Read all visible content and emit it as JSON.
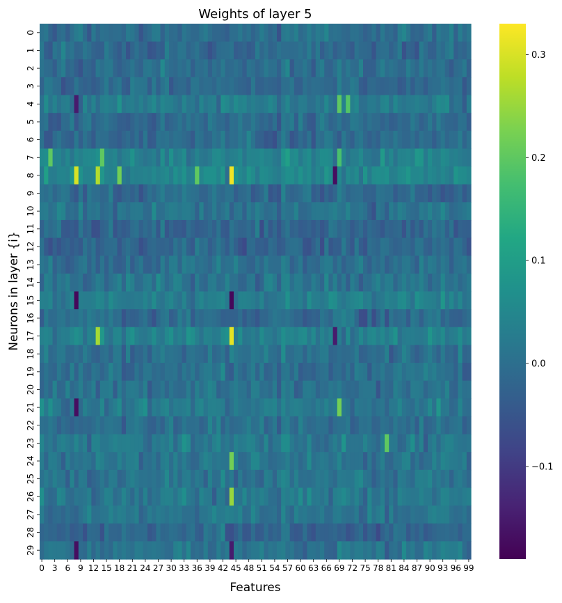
{
  "chart_data": {
    "type": "heatmap",
    "title": "Weights of layer 5",
    "xlabel": "Features",
    "ylabel": "Neurons in layer {i}",
    "n_cols": 100,
    "x_tick_labels": [
      "0",
      "3",
      "6",
      "9",
      "12",
      "15",
      "18",
      "21",
      "24",
      "27",
      "30",
      "33",
      "36",
      "39",
      "42",
      "45",
      "48",
      "51",
      "54",
      "57",
      "60",
      "63",
      "66",
      "69",
      "72",
      "75",
      "78",
      "81",
      "84",
      "87",
      "90",
      "93",
      "96",
      "99"
    ],
    "y_tick_labels": [
      "0",
      "1",
      "2",
      "3",
      "4",
      "5",
      "6",
      "7",
      "8",
      "9",
      "10",
      "11",
      "12",
      "13",
      "14",
      "15",
      "16",
      "17",
      "18",
      "19",
      "20",
      "21",
      "22",
      "23",
      "24",
      "25",
      "26",
      "27",
      "28",
      "29"
    ],
    "colormap": "viridis",
    "vmin": -0.19,
    "vmax": 0.33,
    "colorbar_ticks": [
      {
        "value": -0.1,
        "label": "−0.1"
      },
      {
        "value": 0.0,
        "label": "0.0"
      },
      {
        "value": 0.1,
        "label": "0.1"
      },
      {
        "value": 0.2,
        "label": "0.2"
      },
      {
        "value": 0.3,
        "label": "0.3"
      }
    ],
    "row_bias": [
      0.0,
      -0.01,
      0.0,
      -0.01,
      0.02,
      -0.01,
      -0.01,
      0.04,
      0.05,
      -0.01,
      0.01,
      -0.02,
      -0.02,
      0.0,
      0.01,
      0.03,
      -0.01,
      0.04,
      0.0,
      0.0,
      0.0,
      0.02,
      0.0,
      0.02,
      0.01,
      0.01,
      0.02,
      0.01,
      -0.02,
      0.01
    ],
    "notable_cells": [
      {
        "row": 8,
        "col": 8,
        "value": 0.3
      },
      {
        "row": 8,
        "col": 13,
        "value": 0.27
      },
      {
        "row": 8,
        "col": 44,
        "value": 0.32
      },
      {
        "row": 8,
        "col": 68,
        "value": -0.17
      },
      {
        "row": 8,
        "col": 18,
        "value": 0.22
      },
      {
        "row": 17,
        "col": 44,
        "value": 0.31
      },
      {
        "row": 17,
        "col": 13,
        "value": 0.26
      },
      {
        "row": 17,
        "col": 68,
        "value": -0.15
      },
      {
        "row": 15,
        "col": 8,
        "value": -0.18
      },
      {
        "row": 15,
        "col": 44,
        "value": -0.18
      },
      {
        "row": 21,
        "col": 8,
        "value": -0.17
      },
      {
        "row": 29,
        "col": 8,
        "value": -0.17
      },
      {
        "row": 29,
        "col": 44,
        "value": -0.15
      },
      {
        "row": 4,
        "col": 69,
        "value": 0.2
      },
      {
        "row": 4,
        "col": 71,
        "value": 0.19
      },
      {
        "row": 4,
        "col": 8,
        "value": -0.15
      },
      {
        "row": 7,
        "col": 2,
        "value": 0.2
      },
      {
        "row": 7,
        "col": 14,
        "value": 0.2
      },
      {
        "row": 7,
        "col": 69,
        "value": 0.18
      },
      {
        "row": 26,
        "col": 44,
        "value": 0.25
      },
      {
        "row": 24,
        "col": 44,
        "value": 0.22
      },
      {
        "row": 21,
        "col": 69,
        "value": 0.22
      },
      {
        "row": 23,
        "col": 80,
        "value": 0.2
      },
      {
        "row": 8,
        "col": 36,
        "value": 0.2
      }
    ]
  }
}
